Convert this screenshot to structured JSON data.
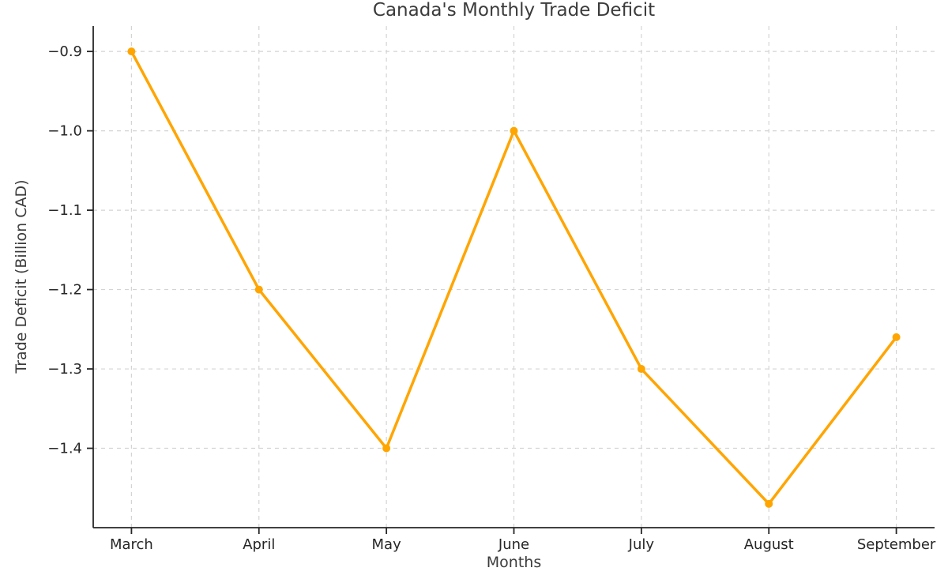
{
  "chart_data": {
    "type": "line",
    "title": "Canada's Monthly Trade Deficit",
    "xlabel": "Months",
    "ylabel": "Trade Deficit (Billion CAD)",
    "categories": [
      "March",
      "April",
      "May",
      "June",
      "July",
      "August",
      "September"
    ],
    "series": [
      {
        "name": "Trade Deficit",
        "values": [
          -0.9,
          -1.2,
          -1.4,
          -1.0,
          -1.3,
          -1.47,
          -1.26
        ]
      }
    ],
    "y_ticks": [
      -0.9,
      -1.0,
      -1.1,
      -1.2,
      -1.3,
      -1.4
    ],
    "y_tick_labels": [
      "−0.9",
      "−1.0",
      "−1.1",
      "−1.2",
      "−1.3",
      "−1.4"
    ],
    "ylim": [
      -1.5,
      -0.868
    ],
    "grid": true,
    "grid_style": "dashed",
    "legend": "none",
    "marker": "circle",
    "style": {
      "line_color": "#FFA500",
      "marker_color": "#FFA500",
      "grid_color": "#d4d4d4",
      "spine_color": "#262626",
      "text_color": "#3b3b3b",
      "background": "#ffffff"
    }
  }
}
